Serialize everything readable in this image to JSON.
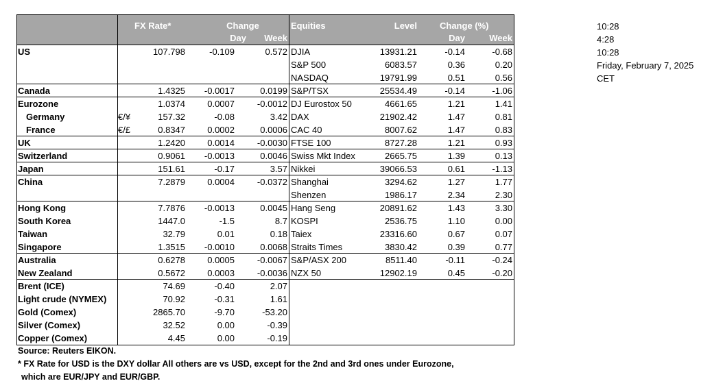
{
  "header": {
    "fx_rate": "FX Rate*",
    "change": "Change",
    "day": "Day",
    "week": "Week",
    "equities": "Equities",
    "level": "Level",
    "change_pct": "Change (%)",
    "eq_day": "Day",
    "eq_week": "Week"
  },
  "fx_rows": [
    {
      "name": "US",
      "sym": "",
      "rate": "107.798",
      "day": "-0.109",
      "week": "0.572",
      "indent": false
    },
    {
      "name": "",
      "sym": "",
      "rate": "",
      "day": "",
      "week": "",
      "indent": false
    },
    {
      "name": "",
      "sym": "",
      "rate": "",
      "day": "",
      "week": "",
      "indent": false
    },
    {
      "name": "Canada",
      "sym": "",
      "rate": "1.4325",
      "day": "-0.0017",
      "week": "0.0199",
      "indent": false
    },
    {
      "name": "Eurozone",
      "sym": "",
      "rate": "1.0374",
      "day": "0.0007",
      "week": "-0.0012",
      "indent": false
    },
    {
      "name": "Germany",
      "sym": "€/¥",
      "rate": "157.32",
      "day": "-0.08",
      "week": "3.42",
      "indent": true
    },
    {
      "name": "France",
      "sym": "€/£",
      "rate": "0.8347",
      "day": "0.0002",
      "week": "0.0006",
      "indent": true
    },
    {
      "name": "UK",
      "sym": "",
      "rate": "1.2420",
      "day": "0.0014",
      "week": "-0.0030",
      "indent": false
    },
    {
      "name": "Switzerland",
      "sym": "",
      "rate": "0.9061",
      "day": "-0.0013",
      "week": "0.0046",
      "indent": false
    },
    {
      "name": "Japan",
      "sym": "",
      "rate": "151.61",
      "day": "-0.17",
      "week": "3.57",
      "indent": false
    },
    {
      "name": "China",
      "sym": "",
      "rate": "7.2879",
      "day": "0.0004",
      "week": "-0.0372",
      "indent": false
    },
    {
      "name": "",
      "sym": "",
      "rate": "",
      "day": "",
      "week": "",
      "indent": false
    },
    {
      "name": "Hong Kong",
      "sym": "",
      "rate": "7.7876",
      "day": "-0.0013",
      "week": "0.0045",
      "indent": false
    },
    {
      "name": "South Korea",
      "sym": "",
      "rate": "1447.0",
      "day": "-1.5",
      "week": "8.7",
      "indent": false
    },
    {
      "name": "Taiwan",
      "sym": "",
      "rate": "32.79",
      "day": "0.01",
      "week": "0.18",
      "indent": false
    },
    {
      "name": "Singapore",
      "sym": "",
      "rate": "1.3515",
      "day": "-0.0010",
      "week": "0.0068",
      "indent": false
    },
    {
      "name": "Australia",
      "sym": "",
      "rate": "0.6278",
      "day": "0.0005",
      "week": "-0.0067",
      "indent": false
    },
    {
      "name": "New Zealand",
      "sym": "",
      "rate": "0.5672",
      "day": "0.0003",
      "week": "-0.0036",
      "indent": false
    },
    {
      "name": "Brent (ICE)",
      "sym": "",
      "rate": "74.69",
      "day": "-0.40",
      "week": "2.07",
      "indent": false
    },
    {
      "name": "Light crude (NYMEX)",
      "sym": "",
      "rate": "70.92",
      "day": "-0.31",
      "week": "1.61",
      "indent": false
    },
    {
      "name": "Gold (Comex)",
      "sym": "",
      "rate": "2865.70",
      "day": "-9.70",
      "week": "-53.20",
      "indent": false
    },
    {
      "name": "Silver (Comex)",
      "sym": "",
      "rate": "32.52",
      "day": "0.00",
      "week": "-0.39",
      "indent": false
    },
    {
      "name": "Copper (Comex)",
      "sym": "",
      "rate": "4.45",
      "day": "0.00",
      "week": "-0.19",
      "indent": false
    }
  ],
  "eq_rows": [
    {
      "name": "DJIA",
      "level": "13931.21",
      "day": "-0.14",
      "week": "-0.68"
    },
    {
      "name": "S&P 500",
      "level": "6083.57",
      "day": "0.36",
      "week": "0.20"
    },
    {
      "name": "NASDAQ",
      "level": "19791.99",
      "day": "0.51",
      "week": "0.56"
    },
    {
      "name": "S&P/TSX",
      "level": "25534.49",
      "day": "-0.14",
      "week": "-1.06"
    },
    {
      "name": "DJ Eurostox 50",
      "level": "4661.65",
      "day": "1.21",
      "week": "1.41"
    },
    {
      "name": "DAX",
      "level": "21902.42",
      "day": "1.47",
      "week": "0.81"
    },
    {
      "name": "CAC 40",
      "level": "8007.62",
      "day": "1.47",
      "week": "0.83"
    },
    {
      "name": "FTSE 100",
      "level": "8727.28",
      "day": "1.21",
      "week": "0.93"
    },
    {
      "name": "Swiss Mkt Index",
      "level": "2665.75",
      "day": "1.39",
      "week": "0.13"
    },
    {
      "name": "Nikkei",
      "level": "39066.53",
      "day": "0.61",
      "week": "-1.13"
    },
    {
      "name": "Shanghai",
      "level": "3294.62",
      "day": "1.27",
      "week": "1.77"
    },
    {
      "name": "Shenzen",
      "level": "1986.17",
      "day": "2.34",
      "week": "2.30"
    },
    {
      "name": "Hang Seng",
      "level": "20891.62",
      "day": "1.43",
      "week": "3.30"
    },
    {
      "name": "KOSPI",
      "level": "2536.75",
      "day": "1.10",
      "week": "0.00"
    },
    {
      "name": "Taiex",
      "level": "23316.60",
      "day": "0.67",
      "week": "0.07"
    },
    {
      "name": "Straits Times",
      "level": "3830.42",
      "day": "0.39",
      "week": "0.77"
    },
    {
      "name": "S&P/ASX  200",
      "level": "8511.40",
      "day": "-0.11",
      "week": "-0.24"
    },
    {
      "name": "NZX 50",
      "level": "12902.19",
      "day": "0.45",
      "week": "-0.20"
    }
  ],
  "side_info": [
    "10:28",
    "4:28",
    "10:28",
    "Friday, February 7, 2025",
    "CET"
  ],
  "notes": {
    "source": "Source:  Reuters EIKON.",
    "line1": "* FX Rate for USD is the DXY dollar  All others are vs USD, except for the 2nd and 3rd ones under Eurozone,",
    "line2": "which are EUR/JPY and EUR/GBP."
  }
}
